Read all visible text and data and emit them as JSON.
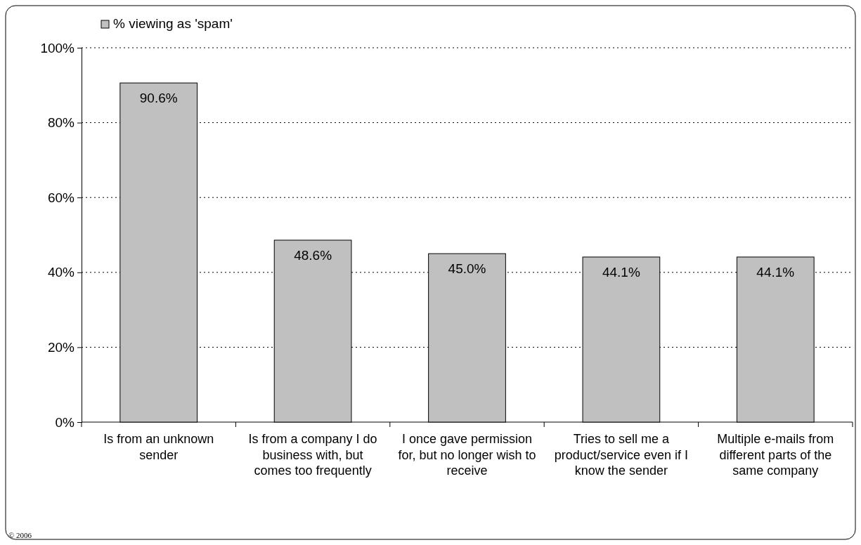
{
  "chart_data": {
    "type": "bar",
    "categories": [
      "Is from an unknown sender",
      "Is from a company I do business with, but comes too frequently",
      "I once gave permission for, but no longer wish to receive",
      "Tries to sell me a product/service even if I know the sender",
      "Multiple e-mails from different parts of the same company"
    ],
    "series": [
      {
        "name": "% viewing as 'spam'",
        "color": "#c0c0c0",
        "values": [
          90.6,
          48.6,
          45.0,
          44.1,
          44.1
        ],
        "value_labels": [
          "90.6%",
          "48.6%",
          "45.0%",
          "44.1%",
          "44.1%"
        ]
      }
    ],
    "ylim": [
      0,
      100
    ],
    "yticks": [
      {
        "value": 0,
        "label": "0%"
      },
      {
        "value": 20,
        "label": "20%"
      },
      {
        "value": 40,
        "label": "40%"
      },
      {
        "value": 60,
        "label": "60%"
      },
      {
        "value": 80,
        "label": "80%"
      },
      {
        "value": 100,
        "label": "100%"
      }
    ],
    "grid": "y",
    "legend": "top left",
    "annotations": [
      "© 2006"
    ]
  }
}
